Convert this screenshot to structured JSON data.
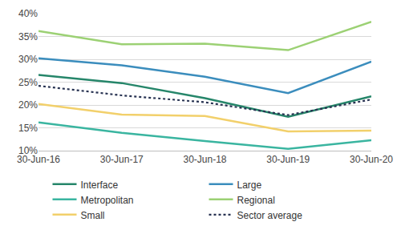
{
  "chart_data": {
    "type": "line",
    "categories": [
      "30-Jun-16",
      "30-Jun-17",
      "30-Jun-18",
      "30-Jun-19",
      "30-Jun-20"
    ],
    "series": [
      {
        "name": "Interface",
        "color": "#26866a",
        "values": [
          26.6,
          24.8,
          21.5,
          17.4,
          21.9
        ]
      },
      {
        "name": "Large",
        "color": "#3b8dbd",
        "values": [
          30.2,
          28.7,
          26.2,
          22.6,
          29.5
        ]
      },
      {
        "name": "Metropolitan",
        "color": "#3ab5a0",
        "values": [
          16.2,
          13.9,
          12.1,
          10.4,
          12.3
        ]
      },
      {
        "name": "Regional",
        "color": "#9cd174",
        "values": [
          36.2,
          33.3,
          33.4,
          32.0,
          38.2
        ]
      },
      {
        "name": "Small",
        "color": "#f2d06b",
        "values": [
          20.2,
          17.9,
          17.6,
          14.2,
          14.4
        ]
      },
      {
        "name": "Sector average",
        "color": "#283352",
        "line_style": "dotted",
        "values": [
          24.2,
          22.1,
          20.6,
          17.8,
          21.2
        ]
      }
    ],
    "ylim": [
      10,
      40
    ],
    "yticks": [
      {
        "value": 10,
        "label": "10%"
      },
      {
        "value": 15,
        "label": "15%"
      },
      {
        "value": 20,
        "label": "20%"
      },
      {
        "value": 25,
        "label": "25%"
      },
      {
        "value": 30,
        "label": "30%"
      },
      {
        "value": 35,
        "label": "35%"
      },
      {
        "value": 40,
        "label": "40%"
      }
    ],
    "grid": true,
    "legend": "bottom"
  }
}
